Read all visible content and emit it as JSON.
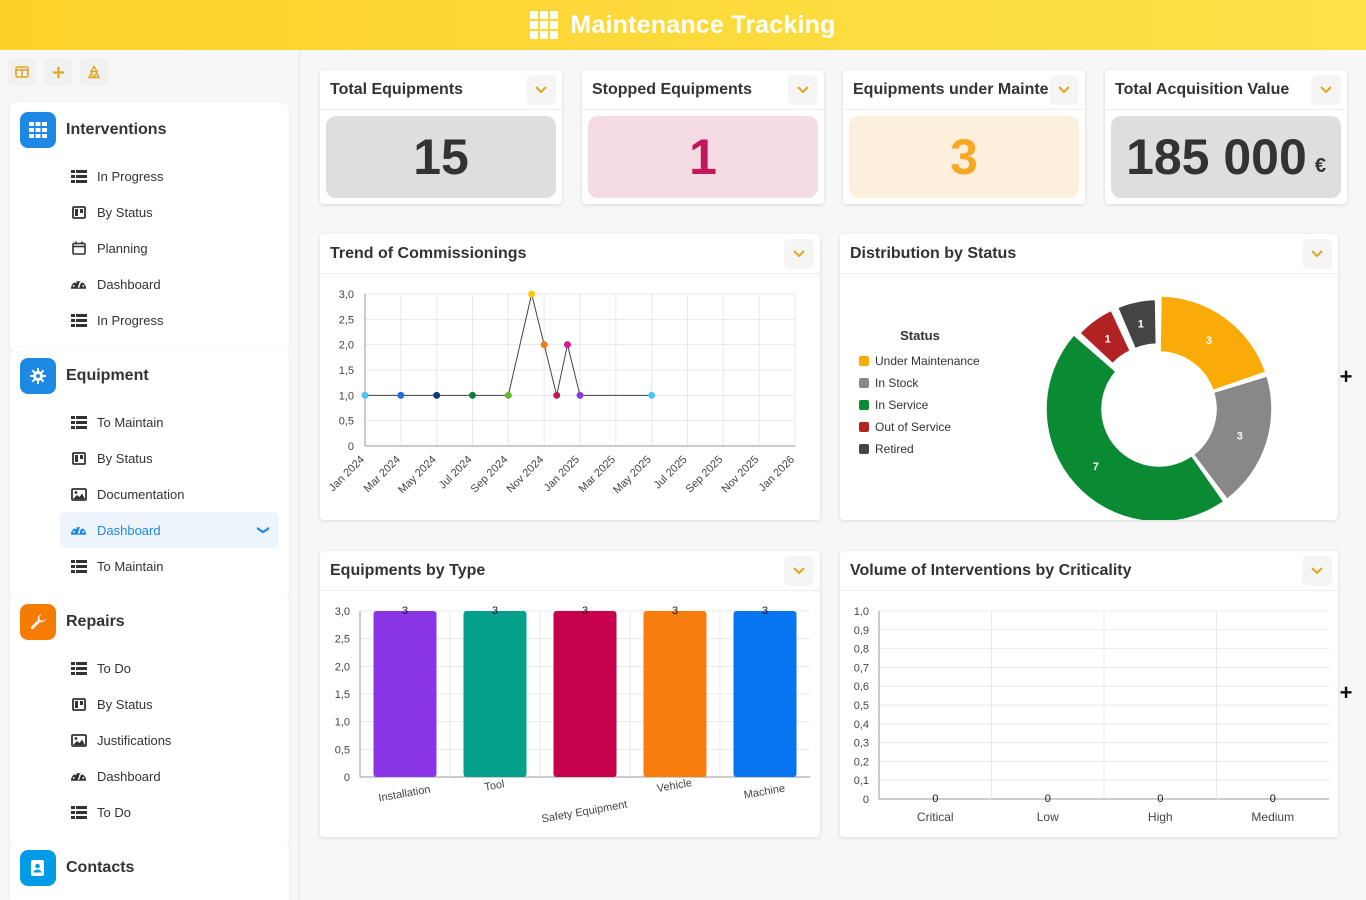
{
  "header": {
    "title": "Maintenance Tracking"
  },
  "sidebar": {
    "tools": [
      "layout-icon",
      "add-icon",
      "recycle-icon"
    ],
    "groups": [
      {
        "title": "Interventions",
        "color": "#1e88e5",
        "icon": "grid-icon",
        "items": [
          {
            "label": "In Progress",
            "icon": "list-icon"
          },
          {
            "label": "By Status",
            "icon": "kanban-icon"
          },
          {
            "label": "Planning",
            "icon": "calendar-icon"
          },
          {
            "label": "Dashboard",
            "icon": "gauge-icon"
          },
          {
            "label": "In Progress",
            "icon": "list-icon"
          }
        ]
      },
      {
        "title": "Equipment",
        "color": "#1e88e5",
        "icon": "gear-icon",
        "items": [
          {
            "label": "To Maintain",
            "icon": "list-icon"
          },
          {
            "label": "By Status",
            "icon": "kanban-icon"
          },
          {
            "label": "Documentation",
            "icon": "image-icon"
          },
          {
            "label": "Dashboard",
            "icon": "gauge-icon",
            "active": true
          },
          {
            "label": "To Maintain",
            "icon": "list-icon"
          }
        ]
      },
      {
        "title": "Repairs",
        "color": "#f57c00",
        "icon": "wrench-icon",
        "items": [
          {
            "label": "To Do",
            "icon": "list-icon"
          },
          {
            "label": "By Status",
            "icon": "kanban-icon"
          },
          {
            "label": "Justifications",
            "icon": "image-icon"
          },
          {
            "label": "Dashboard",
            "icon": "gauge-icon"
          },
          {
            "label": "To Do",
            "icon": "list-icon"
          }
        ]
      },
      {
        "title": "Contacts",
        "color": "#039be5",
        "icon": "contact-icon",
        "items": []
      }
    ]
  },
  "kpis": [
    {
      "title": "Total Equipments",
      "value": "15",
      "bg": "#dedede",
      "color": "#333333",
      "unit": ""
    },
    {
      "title": "Stopped Equipments",
      "value": "1",
      "bg": "#f4dbe4",
      "color": "#c2185b",
      "unit": ""
    },
    {
      "title": "Equipments under Mainte",
      "value": "3",
      "bg": "#fcefdb",
      "color": "#f9a825",
      "unit": ""
    },
    {
      "title": "Total Acquisition Value",
      "value": "185 000",
      "bg": "#dedede",
      "color": "#333333",
      "unit": "€"
    }
  ],
  "charts": {
    "trend": {
      "title": "Trend of Commissionings"
    },
    "status": {
      "title": "Distribution by Status"
    },
    "type": {
      "title": "Equipments by Type"
    },
    "criticality": {
      "title": "Volume of Interventions by Criticality"
    }
  },
  "chart_data": [
    {
      "type": "line",
      "x": [
        "Jan 2024",
        "Mar 2024",
        "May 2024",
        "Jul 2024",
        "Sep 2024",
        "Nov 2024",
        "Jan 2025",
        "Mar 2025",
        "May 2025",
        "Jul 2025",
        "Sep 2025",
        "Nov 2025",
        "Jan 2026"
      ],
      "points": [
        {
          "x": 0,
          "y": 1,
          "color": "#4fc3f7"
        },
        {
          "x": 1,
          "y": 1,
          "color": "#1e6fd9"
        },
        {
          "x": 2,
          "y": 1,
          "color": "#0d3b7a"
        },
        {
          "x": 3,
          "y": 1,
          "color": "#0e7a3e"
        },
        {
          "x": 4,
          "y": 1,
          "color": "#66bb2a"
        },
        {
          "x": 4.65,
          "y": 3,
          "color": "#f9c80e"
        },
        {
          "x": 5,
          "y": 2,
          "color": "#ef7b10"
        },
        {
          "x": 5.35,
          "y": 1,
          "color": "#c2185b"
        },
        {
          "x": 5.65,
          "y": 2,
          "color": "#d81b9c"
        },
        {
          "x": 6,
          "y": 1,
          "color": "#8e3ad8"
        },
        {
          "x": 8,
          "y": 1,
          "color": "#4fc3f7"
        }
      ],
      "ylim": [
        0,
        3
      ],
      "yticks": [
        "0",
        "0,5",
        "1,0",
        "1,5",
        "2,0",
        "2,5",
        "3,0"
      ]
    },
    {
      "type": "pie",
      "legend_title": "Status",
      "labels": [
        "Under Maintenance",
        "In Stock",
        "In Service",
        "Out of Service",
        "Retired"
      ],
      "values": [
        3,
        3,
        7,
        1,
        1
      ],
      "colors": [
        "#fbab07",
        "#888888",
        "#0a8a33",
        "#b22222",
        "#444444"
      ]
    },
    {
      "type": "bar",
      "categories": [
        "Installation",
        "Tool",
        "Safety Equipment",
        "Vehicle",
        "Machine"
      ],
      "values": [
        3,
        3,
        3,
        3,
        3
      ],
      "colors": [
        "#8a35e6",
        "#03a08c",
        "#c7004c",
        "#f77d0c",
        "#0875f0"
      ],
      "ylim": [
        0,
        3
      ],
      "yticks": [
        "0",
        "0,5",
        "1,0",
        "1,5",
        "2,0",
        "2,5",
        "3,0"
      ]
    },
    {
      "type": "bar",
      "categories": [
        "Critical",
        "Low",
        "High",
        "Medium"
      ],
      "values": [
        0,
        0,
        0,
        0
      ],
      "ylim": [
        0,
        1
      ],
      "yticks": [
        "0",
        "0,1",
        "0,2",
        "0,3",
        "0,4",
        "0,5",
        "0,6",
        "0,7",
        "0,8",
        "0,9",
        "1,0"
      ]
    }
  ]
}
